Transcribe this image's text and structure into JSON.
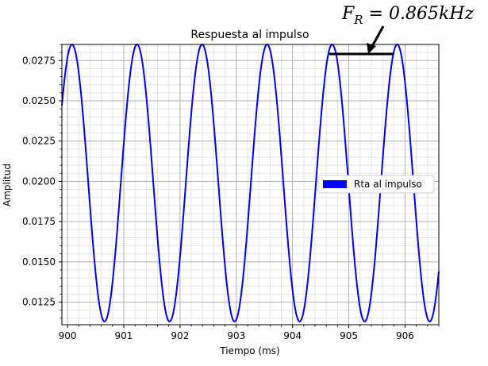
{
  "chart_data": {
    "type": "line",
    "title": "Respuesta al impulso",
    "xlabel": "Tiempo (ms)",
    "ylabel": "Amplitud",
    "xlim": [
      899.9,
      906.6
    ],
    "ylim": [
      0.0111,
      0.0285
    ],
    "xticks": [
      "900",
      "901",
      "902",
      "903",
      "904",
      "905",
      "906"
    ],
    "yticks": [
      "0.0125",
      "0.0150",
      "0.0175",
      "0.0200",
      "0.0225",
      "0.0250",
      "0.0275"
    ],
    "grid": true,
    "legend": {
      "location": "center-right",
      "entries": [
        "Rta al impulso"
      ]
    },
    "annotation": "F_R = 0.865kHz",
    "annotation_bar_x": [
      904.65,
      905.8
    ],
    "series": [
      {
        "name": "Rta al impulso",
        "color": "#0000ee",
        "signal": {
          "form": "cosine",
          "offset": 0.0199,
          "amplitude": 0.0086,
          "frequency_khz": 0.865,
          "peak_time_ms": 900.08
        },
        "x": [
          900.08,
          900.66,
          901.23,
          901.81,
          902.39,
          902.97,
          903.55,
          904.12,
          904.7,
          905.28,
          905.86,
          906.44
        ],
        "y": [
          0.0285,
          0.0113,
          0.0285,
          0.0113,
          0.0285,
          0.0113,
          0.0285,
          0.0113,
          0.0285,
          0.0113,
          0.0285,
          0.0113
        ]
      }
    ]
  }
}
